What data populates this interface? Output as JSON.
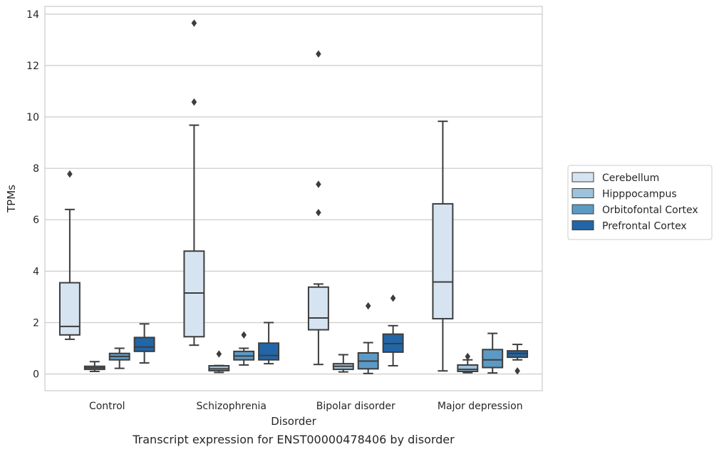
{
  "chart_data": {
    "type": "boxplot",
    "xlabel": "Disorder",
    "ylabel": "TPMs",
    "caption": "Transcript expression for ENST00000478406 by disorder",
    "ylim": [
      -0.65,
      14.3
    ],
    "yticks": [
      0,
      2,
      4,
      6,
      8,
      10,
      12,
      14
    ],
    "grid": "horizontal",
    "legend_position": "right",
    "categories": [
      "Control",
      "Schizophrenia",
      "Bipolar disorder",
      "Major depression"
    ],
    "series": [
      {
        "name": "Cerebellum",
        "color": "#d6e4f2",
        "boxes": [
          {
            "whislo": 1.35,
            "q1": 1.52,
            "med": 1.85,
            "q3": 3.55,
            "whishi": 6.4,
            "fliers": [
              7.78
            ]
          },
          {
            "whislo": 1.12,
            "q1": 1.45,
            "med": 3.15,
            "q3": 4.78,
            "whishi": 9.68,
            "fliers": [
              10.58,
              13.65
            ]
          },
          {
            "whislo": 0.37,
            "q1": 1.72,
            "med": 2.18,
            "q3": 3.38,
            "whishi": 3.5,
            "fliers": [
              6.28,
              7.38,
              12.45
            ]
          },
          {
            "whislo": 0.12,
            "q1": 2.15,
            "med": 3.58,
            "q3": 6.62,
            "whishi": 9.83,
            "fliers": []
          }
        ]
      },
      {
        "name": "Hipppocampus",
        "color": "#9dc2dc",
        "boxes": [
          {
            "whislo": 0.1,
            "q1": 0.18,
            "med": 0.24,
            "q3": 0.3,
            "whishi": 0.48,
            "fliers": []
          },
          {
            "whislo": 0.06,
            "q1": 0.13,
            "med": 0.2,
            "q3": 0.32,
            "whishi": 0.33,
            "fliers": [
              0.78
            ]
          },
          {
            "whislo": 0.08,
            "q1": 0.18,
            "med": 0.3,
            "q3": 0.4,
            "whishi": 0.75,
            "fliers": []
          },
          {
            "whislo": 0.05,
            "q1": 0.1,
            "med": 0.18,
            "q3": 0.35,
            "whishi": 0.55,
            "fliers": [
              0.68
            ]
          }
        ]
      },
      {
        "name": "Orbitofontal Cortex",
        "color": "#5c9ac5",
        "boxes": [
          {
            "whislo": 0.22,
            "q1": 0.55,
            "med": 0.68,
            "q3": 0.8,
            "whishi": 1.0,
            "fliers": []
          },
          {
            "whislo": 0.35,
            "q1": 0.55,
            "med": 0.7,
            "q3": 0.88,
            "whishi": 1.0,
            "fliers": [
              1.52
            ]
          },
          {
            "whislo": 0.02,
            "q1": 0.2,
            "med": 0.5,
            "q3": 0.82,
            "whishi": 1.22,
            "fliers": [
              2.65
            ]
          },
          {
            "whislo": 0.04,
            "q1": 0.25,
            "med": 0.55,
            "q3": 0.95,
            "whishi": 1.58,
            "fliers": []
          }
        ]
      },
      {
        "name": "Prefrontal Cortex",
        "color": "#2166a8",
        "boxes": [
          {
            "whislo": 0.43,
            "q1": 0.88,
            "med": 1.05,
            "q3": 1.42,
            "whishi": 1.95,
            "fliers": []
          },
          {
            "whislo": 0.4,
            "q1": 0.55,
            "med": 0.72,
            "q3": 1.2,
            "whishi": 2.0,
            "fliers": []
          },
          {
            "whislo": 0.32,
            "q1": 0.85,
            "med": 1.18,
            "q3": 1.55,
            "whishi": 1.88,
            "fliers": [
              2.95
            ]
          },
          {
            "whislo": 0.55,
            "q1": 0.65,
            "med": 0.8,
            "q3": 0.9,
            "whishi": 1.15,
            "fliers": [
              0.12
            ]
          }
        ]
      }
    ]
  }
}
